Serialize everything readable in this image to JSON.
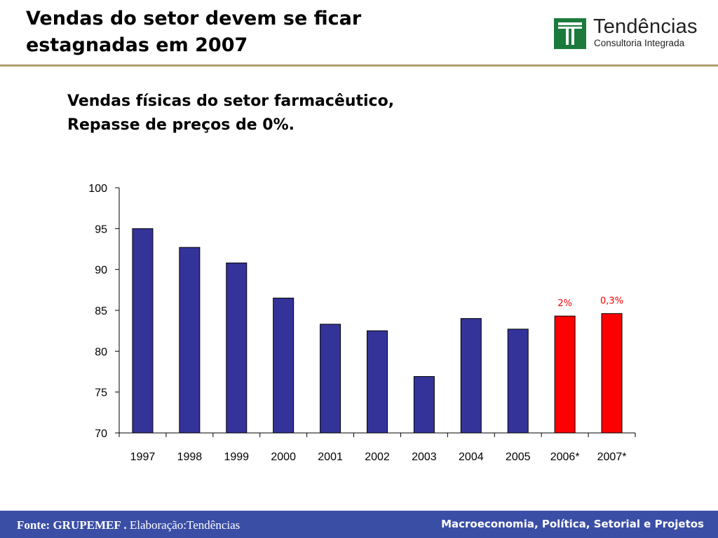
{
  "slide": {
    "title_line1": "Vendas do setor devem se ficar",
    "title_line2": "estagnadas em 2007"
  },
  "logo": {
    "name": "Tendências",
    "tagline": "Consultoria Integrada",
    "color": "#1c7a3c"
  },
  "chart_data": {
    "type": "bar",
    "title": "Vendas físicas do setor farmacêutico, Repasse de preços de 0%.",
    "title_line1": "Vendas físicas do setor farmacêutico,",
    "title_line2": "Repasse de preços de 0%.",
    "categories": [
      "1997",
      "1998",
      "1999",
      "2000",
      "2001",
      "2002",
      "2003",
      "2004",
      "2005",
      "2006*",
      "2007*"
    ],
    "values": [
      95.0,
      92.7,
      90.8,
      86.5,
      83.3,
      82.5,
      76.9,
      84.0,
      82.7,
      84.3,
      84.6
    ],
    "highlighted": [
      false,
      false,
      false,
      false,
      false,
      false,
      false,
      false,
      false,
      true,
      true
    ],
    "annotations": [
      "",
      "",
      "",
      "",
      "",
      "",
      "",
      "",
      "",
      "2%",
      "0,3%"
    ],
    "yticks": [
      "70",
      "75",
      "80",
      "85",
      "90",
      "95",
      "100"
    ],
    "ylim": [
      70,
      100
    ],
    "xlabel": "",
    "ylabel": "",
    "grid": false,
    "colors": {
      "bar": "#333399",
      "highlight": "#ff0000",
      "annotation": "#ff0000"
    }
  },
  "footer": {
    "source_bold": "Fonte: GRUPEMEF .",
    "source_rest": " Elaboração:Tendências",
    "tagline": "Macroeconomia, Política, Setorial e Projetos",
    "color": "#3b4ea6"
  }
}
